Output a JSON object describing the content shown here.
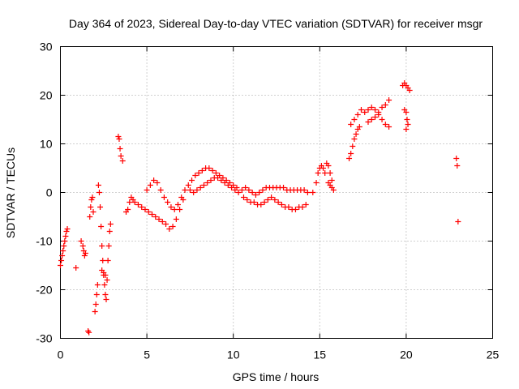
{
  "chart_data": {
    "type": "scatter",
    "title": "Day 364 of 2023, Sidereal Day-to-day VTEC variation (SDTVAR) for receiver msgr",
    "xlabel": "GPS time / hours",
    "ylabel": "SDTVAR / TECUs",
    "xlim": [
      0,
      25
    ],
    "ylim": [
      -30,
      30
    ],
    "xticks": [
      "0",
      "5",
      "10",
      "15",
      "20",
      "25"
    ],
    "yticks": [
      "-30",
      "-20",
      "-10",
      "0",
      "10",
      "20",
      "30"
    ],
    "grid": true,
    "marker": "+",
    "color": "#ff0000",
    "x": [
      0.0,
      0.05,
      0.1,
      0.15,
      0.2,
      0.25,
      0.3,
      0.35,
      0.4,
      0.9,
      1.2,
      1.3,
      1.35,
      1.4,
      1.45,
      1.6,
      1.65,
      1.7,
      1.75,
      1.8,
      1.85,
      1.9,
      2.0,
      2.05,
      2.1,
      2.15,
      2.2,
      2.25,
      2.3,
      2.35,
      2.4,
      2.45,
      2.5,
      2.55,
      2.6,
      2.65,
      2.7,
      2.75,
      2.8,
      2.85,
      2.9,
      2.4,
      2.5,
      2.6,
      3.35,
      3.4,
      3.45,
      3.5,
      3.6,
      3.8,
      3.9,
      4.0,
      4.1,
      4.2,
      4.3,
      4.5,
      4.7,
      4.9,
      5.1,
      5.3,
      5.5,
      5.7,
      5.9,
      6.1,
      6.3,
      6.5,
      6.7,
      6.9,
      7.1,
      5.0,
      5.2,
      5.4,
      5.6,
      5.8,
      6.0,
      6.2,
      6.4,
      6.6,
      6.8,
      7.0,
      7.2,
      7.4,
      7.6,
      7.8,
      8.0,
      8.2,
      8.4,
      8.6,
      8.8,
      9.0,
      9.2,
      9.4,
      9.6,
      9.8,
      10.0,
      10.2,
      7.5,
      7.7,
      7.9,
      8.1,
      8.3,
      8.5,
      8.7,
      8.9,
      9.1,
      9.3,
      9.5,
      9.7,
      9.9,
      10.1,
      10.3,
      10.5,
      10.7,
      10.9,
      11.1,
      11.3,
      11.5,
      11.7,
      11.9,
      12.1,
      12.3,
      12.5,
      12.7,
      12.9,
      13.1,
      13.3,
      13.5,
      13.7,
      13.9,
      14.1,
      14.3,
      10.6,
      10.8,
      11.0,
      11.2,
      11.4,
      11.6,
      11.8,
      12.0,
      12.2,
      12.4,
      12.6,
      12.8,
      13.0,
      13.2,
      13.4,
      13.6,
      13.8,
      14.0,
      14.2,
      14.6,
      14.8,
      14.9,
      15.0,
      15.1,
      15.2,
      15.3,
      15.4,
      15.5,
      15.6,
      15.7,
      15.5,
      15.6,
      15.7,
      15.8,
      16.7,
      16.8,
      16.9,
      17.0,
      17.1,
      17.2,
      17.3,
      16.8,
      17.0,
      17.2,
      17.4,
      17.6,
      17.8,
      18.0,
      18.2,
      18.4,
      18.6,
      18.8,
      19.0,
      17.8,
      18.0,
      18.2,
      18.4,
      18.6,
      18.8,
      19.0,
      19.8,
      19.9,
      20.0,
      20.1,
      20.2,
      19.9,
      20.0,
      20.05,
      20.1,
      20.0,
      22.9,
      22.95,
      23.0
    ],
    "y": [
      -15.0,
      -14.0,
      -13.0,
      -12.0,
      -11.0,
      -10.0,
      -9.0,
      -8.0,
      -7.5,
      -15.5,
      -10.0,
      -11.0,
      -12.0,
      -13.0,
      -12.5,
      -28.5,
      -28.8,
      -5.0,
      -3.0,
      -1.5,
      -1.0,
      -4.0,
      -24.5,
      -23.0,
      -21.0,
      -19.0,
      1.5,
      0.0,
      -3.0,
      -7.0,
      -11.0,
      -14.0,
      -17.0,
      -19.0,
      -21.0,
      -22.0,
      -18.0,
      -14.0,
      -11.0,
      -8.0,
      -6.5,
      -16.0,
      -16.5,
      -17.0,
      11.5,
      11.0,
      9.0,
      7.5,
      6.5,
      -4.0,
      -3.5,
      -2.0,
      -1.0,
      -1.5,
      -2.0,
      -2.5,
      -3.0,
      -3.5,
      -4.0,
      -4.5,
      -5.0,
      -5.5,
      -6.0,
      -6.5,
      -7.5,
      -7.0,
      -5.5,
      -3.5,
      -1.5,
      0.5,
      1.5,
      2.5,
      2.0,
      0.5,
      -1.0,
      -2.0,
      -3.0,
      -3.5,
      -2.5,
      -1.0,
      0.5,
      1.5,
      2.5,
      3.5,
      4.0,
      4.5,
      5.0,
      5.0,
      4.5,
      4.0,
      3.5,
      3.0,
      2.5,
      2.0,
      1.5,
      1.0,
      0.5,
      0.0,
      0.5,
      1.0,
      1.5,
      2.0,
      2.5,
      3.0,
      3.0,
      2.5,
      2.0,
      1.5,
      1.0,
      0.5,
      0.0,
      0.5,
      1.0,
      0.5,
      0.0,
      -0.5,
      0.0,
      0.5,
      1.0,
      1.0,
      1.0,
      1.0,
      1.0,
      1.0,
      0.5,
      0.5,
      0.5,
      0.5,
      0.5,
      0.5,
      0.0,
      -1.0,
      -1.5,
      -2.0,
      -2.0,
      -2.5,
      -2.5,
      -2.0,
      -1.5,
      -1.0,
      -1.5,
      -2.0,
      -2.5,
      -3.0,
      -3.0,
      -3.5,
      -3.5,
      -3.0,
      -3.0,
      -2.5,
      0.0,
      2.0,
      4.0,
      5.0,
      5.5,
      5.0,
      4.0,
      6.0,
      5.5,
      4.0,
      2.5,
      2.0,
      1.5,
      1.0,
      0.5,
      7.0,
      8.0,
      9.5,
      11.0,
      12.0,
      13.0,
      13.5,
      14.0,
      15.0,
      16.0,
      17.0,
      16.5,
      17.0,
      17.5,
      17.0,
      16.5,
      17.5,
      18.0,
      19.0,
      14.5,
      15.0,
      15.5,
      16.0,
      15.0,
      14.0,
      13.5,
      22.0,
      22.5,
      22.0,
      21.5,
      21.0,
      17.0,
      16.5,
      15.0,
      14.0,
      13.0,
      7.0,
      5.5,
      -6.0
    ]
  }
}
